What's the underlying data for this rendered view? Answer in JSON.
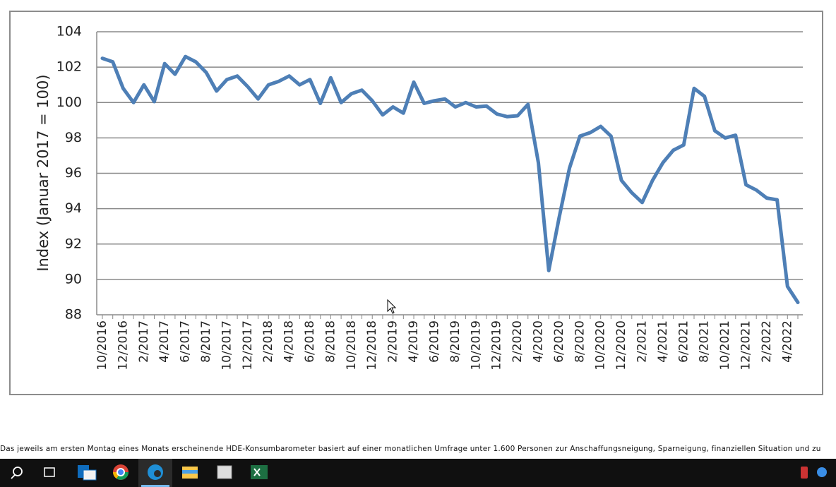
{
  "chart_data": {
    "type": "line",
    "y_label": "Index (Januar 2017 = 100)",
    "categories": [
      "10/2016",
      null,
      "12/2016",
      null,
      "2/2017",
      null,
      "4/2017",
      null,
      "6/2017",
      null,
      "8/2017",
      null,
      "10/2017",
      null,
      "12/2017",
      null,
      "2/2018",
      null,
      "4/2018",
      null,
      "6/2018",
      null,
      "8/2018",
      null,
      "10/2018",
      null,
      "12/2018",
      null,
      "2/2019",
      null,
      "4/2019",
      null,
      "6/2019",
      null,
      "8/2019",
      null,
      "10/2019",
      null,
      "12/2019",
      null,
      "2/2020",
      null,
      "4/2020",
      null,
      "6/2020",
      null,
      "8/2020",
      null,
      "10/2020",
      null,
      "12/2020",
      null,
      "2/2021",
      null,
      "4/2021",
      null,
      "6/2021",
      null,
      "8/2021",
      null,
      "10/2021",
      null,
      "12/2021",
      null,
      "2/2022",
      null,
      "4/2022",
      null
    ],
    "series": [
      {
        "name": "HDE-Konsumbarometer",
        "color": "#4e7fb6",
        "values": [
          102.5,
          102.3,
          100.8,
          100.0,
          101.0,
          100.05,
          102.2,
          101.6,
          102.6,
          102.3,
          101.7,
          100.65,
          101.3,
          101.5,
          100.9,
          100.2,
          101.0,
          101.2,
          101.5,
          101.0,
          101.3,
          99.95,
          101.4,
          100.0,
          100.5,
          100.7,
          100.1,
          99.3,
          99.75,
          99.4,
          101.15,
          99.95,
          100.1,
          100.2,
          99.75,
          100.0,
          99.75,
          99.8,
          99.35,
          99.2,
          99.25,
          99.9,
          96.6,
          90.5,
          93.5,
          96.3,
          98.1,
          98.3,
          98.65,
          98.1,
          95.6,
          94.9,
          94.35,
          95.6,
          96.6,
          97.3,
          97.6,
          100.8,
          100.35,
          98.4,
          98.0,
          98.15,
          95.35,
          95.05,
          94.6,
          94.5,
          89.6,
          88.7
        ]
      }
    ],
    "ylim": [
      88,
      104
    ],
    "yticks": [
      88,
      90,
      92,
      94,
      96,
      98,
      100,
      102,
      104
    ],
    "grid": true
  },
  "caption": "Das jeweils am ersten Montag eines Monats erscheinende HDE-Konsumbarometer basiert auf einer monatlichen Umfrage unter 1.600 Personen zur Anschaffungsneigung, Sparneigung, finanziellen Situation und zu"
}
